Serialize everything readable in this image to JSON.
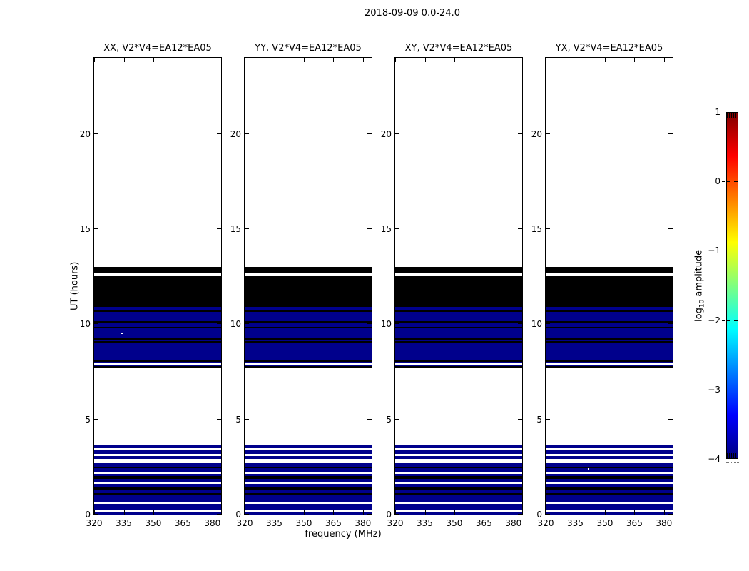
{
  "figure": {
    "title": "2018-09-09 0.0-24.0",
    "xlabel": "frequency (MHz)",
    "ylabel": "UT (hours)",
    "colorbar_label": {
      "prefix": "log",
      "sub": "10",
      "suffix": " amplitude"
    }
  },
  "panels": [
    {
      "title": "XX, V2*V4=EA12*EA05"
    },
    {
      "title": "YY, V2*V4=EA12*EA05"
    },
    {
      "title": "XY, V2*V4=EA12*EA05"
    },
    {
      "title": "YX, V2*V4=EA12*EA05"
    }
  ],
  "axes": {
    "xtick_labels": [
      "320",
      "335",
      "350",
      "365",
      "380"
    ],
    "ytick_labels": [
      "0",
      "5",
      "10",
      "15",
      "20"
    ]
  },
  "colorbar": {
    "tick_labels": [
      "1",
      "0",
      "−1",
      "−2",
      "−3",
      "−4"
    ]
  },
  "colors": {
    "B": "#00008c",
    "K": "#000000",
    "W": "#ffffff",
    "axis": "#000000"
  },
  "chart_data": {
    "type": "heatmap",
    "title": "2018-09-09 0.0-24.0",
    "xlabel": "frequency (MHz)",
    "ylabel": "UT (hours)",
    "xlim": [
      320,
      384.4
    ],
    "ylim": [
      0,
      24
    ],
    "xticks": [
      320,
      335,
      350,
      365,
      380
    ],
    "yticks": [
      0,
      5,
      10,
      15,
      20
    ],
    "panel_titles": [
      "XX, V2*V4=EA12*EA05",
      "YY, V2*V4=EA12*EA05",
      "XY, V2*V4=EA12*EA05",
      "YX, V2*V4=EA12*EA05"
    ],
    "colorbar": {
      "label": "log10 amplitude",
      "ticks": [
        1,
        0,
        -1,
        -2,
        -3,
        -4
      ],
      "vmin": -4,
      "vmax": 1,
      "cmap": "jet"
    },
    "legend_position": "right-colorbar",
    "grid": false,
    "bands_ut": [
      [
        0.0,
        0.14,
        "B"
      ],
      [
        0.14,
        0.21,
        "W"
      ],
      [
        0.21,
        0.55,
        "B"
      ],
      [
        0.55,
        0.64,
        "W"
      ],
      [
        0.64,
        1.01,
        "B"
      ],
      [
        1.01,
        1.11,
        "K"
      ],
      [
        1.11,
        1.3,
        "B"
      ],
      [
        1.3,
        1.41,
        "K"
      ],
      [
        1.41,
        1.61,
        "B"
      ],
      [
        1.61,
        1.71,
        "W"
      ],
      [
        1.71,
        1.86,
        "B"
      ],
      [
        1.86,
        2.01,
        "K"
      ],
      [
        2.01,
        2.14,
        "B"
      ],
      [
        2.14,
        2.25,
        "W"
      ],
      [
        2.25,
        2.44,
        "B"
      ],
      [
        2.44,
        2.52,
        "K"
      ],
      [
        2.52,
        2.74,
        "B"
      ],
      [
        2.74,
        2.93,
        "W"
      ],
      [
        2.93,
        3.09,
        "B"
      ],
      [
        3.09,
        3.18,
        "W"
      ],
      [
        3.18,
        3.4,
        "B"
      ],
      [
        3.4,
        3.51,
        "W"
      ],
      [
        3.51,
        3.66,
        "B"
      ],
      [
        3.66,
        7.74,
        "W"
      ],
      [
        7.74,
        7.81,
        "K"
      ],
      [
        7.81,
        7.89,
        "B"
      ],
      [
        7.89,
        7.96,
        "W"
      ],
      [
        7.96,
        8.04,
        "B"
      ],
      [
        8.04,
        8.11,
        "K"
      ],
      [
        8.11,
        9.05,
        "B"
      ],
      [
        9.05,
        9.12,
        "K"
      ],
      [
        9.12,
        9.2,
        "B"
      ],
      [
        9.2,
        9.27,
        "K"
      ],
      [
        9.27,
        9.79,
        "B"
      ],
      [
        9.79,
        9.87,
        "K"
      ],
      [
        9.87,
        10.09,
        "B"
      ],
      [
        10.09,
        10.17,
        "K"
      ],
      [
        10.17,
        10.65,
        "B"
      ],
      [
        10.65,
        10.73,
        "K"
      ],
      [
        10.73,
        10.92,
        "B"
      ],
      [
        10.92,
        12.57,
        "K"
      ],
      [
        12.57,
        12.69,
        "W"
      ],
      [
        12.69,
        13.01,
        "K"
      ],
      [
        13.01,
        24.0,
        "W"
      ]
    ],
    "dots": [
      {
        "panel": 0,
        "freq": 333.7,
        "ut": 9.5
      },
      {
        "panel": 3,
        "freq": 341.2,
        "ut": 2.36
      }
    ]
  }
}
